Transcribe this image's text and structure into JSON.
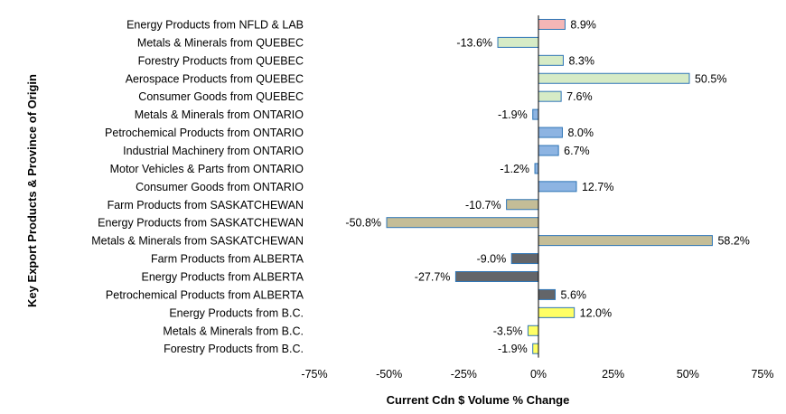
{
  "chart_data": {
    "type": "bar",
    "orientation": "horizontal",
    "categories": [
      "Energy Products from NFLD & LAB",
      "Metals & Minerals from QUEBEC",
      "Forestry Products from QUEBEC",
      "Aerospace Products from QUEBEC",
      "Consumer Goods from QUEBEC",
      "Metals & Minerals from ONTARIO",
      "Petrochemical Products from ONTARIO",
      "Industrial Machinery from ONTARIO",
      "Motor Vehicles & Parts from ONTARIO",
      "Consumer Goods from ONTARIO",
      "Farm Products from SASKATCHEWAN",
      "Energy Products from SASKATCHEWAN",
      "Metals & Minerals from SASKATCHEWAN",
      "Farm Products from ALBERTA",
      "Energy Products from ALBERTA",
      "Petrochemical Products from ALBERTA",
      "Energy Products from B.C.",
      "Metals & Minerals from B.C.",
      "Forestry Products from B.C."
    ],
    "values": [
      8.9,
      -13.6,
      8.3,
      50.5,
      7.6,
      -1.9,
      8.0,
      6.7,
      -1.2,
      12.7,
      -10.7,
      -50.8,
      58.2,
      -9.0,
      -27.7,
      5.6,
      12.0,
      -3.5,
      -1.9
    ],
    "value_labels": [
      "8.9%",
      "-13.6%",
      "8.3%",
      "50.5%",
      "7.6%",
      "-1.9%",
      "8.0%",
      "6.7%",
      "-1.2%",
      "12.7%",
      "-10.7%",
      "-50.8%",
      "58.2%",
      "-9.0%",
      "-27.7%",
      "5.6%",
      "12.0%",
      "-3.5%",
      "-1.9%"
    ],
    "bar_colors": [
      "#f4b6b6",
      "#d6ebc6",
      "#d6ebc6",
      "#d6ebc6",
      "#d6ebc6",
      "#8db4e2",
      "#8db4e2",
      "#8db4e2",
      "#8db4e2",
      "#8db4e2",
      "#c4bd97",
      "#c4bd97",
      "#c4bd97",
      "#636569",
      "#636569",
      "#636569",
      "#ffff66",
      "#ffff66",
      "#ffff66"
    ],
    "bar_border_color": "#2e75b6",
    "xlim": [
      -75,
      75
    ],
    "x_ticks": [
      -75,
      -50,
      -25,
      0,
      25,
      50,
      75
    ],
    "x_tick_labels": [
      "-75%",
      "-50%",
      "-25%",
      "0%",
      "25%",
      "50%",
      "75%"
    ],
    "xlabel": "Current Cdn $ Volume % Change",
    "ylabel": "Key Export Products & Province of Origin",
    "grid": false,
    "legend": "none"
  }
}
